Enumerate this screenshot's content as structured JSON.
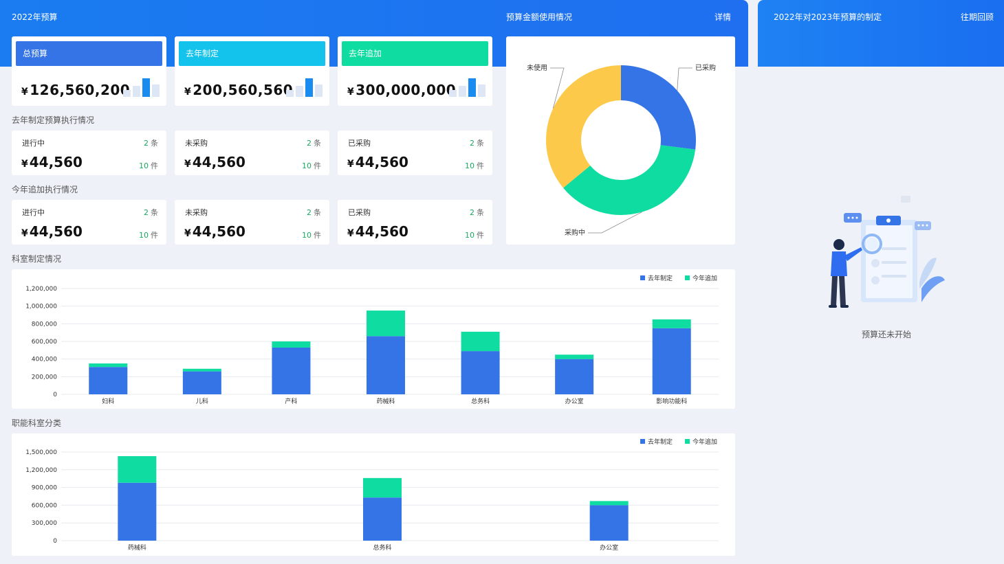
{
  "header": {
    "budget_title": "2022年预算",
    "usage_title": "预算金额使用情况",
    "details_link": "详情",
    "planning_title": "2022年对2023年预算的制定",
    "history_link": "往期回顾"
  },
  "summary_cards": [
    {
      "tag": "总预算",
      "color": "#3574e6",
      "yen": "¥",
      "amount": "126,560,200"
    },
    {
      "tag": "去年制定",
      "color": "#13c3ec",
      "yen": "¥",
      "amount": "200,560,560"
    },
    {
      "tag": "去年追加",
      "color": "#0fdca0",
      "yen": "¥",
      "amount": "300,000,000"
    }
  ],
  "last_year_section": {
    "title": "去年制定预算执行情况",
    "cards": [
      {
        "label": "进行中",
        "count": "2",
        "count_unit": "条",
        "yen": "¥",
        "amount": "44,560",
        "pieces": "10",
        "pieces_unit": "件"
      },
      {
        "label": "未采购",
        "count": "2",
        "count_unit": "条",
        "yen": "¥",
        "amount": "44,560",
        "pieces": "10",
        "pieces_unit": "件"
      },
      {
        "label": "已采购",
        "count": "2",
        "count_unit": "条",
        "yen": "¥",
        "amount": "44,560",
        "pieces": "10",
        "pieces_unit": "件"
      }
    ]
  },
  "this_year_section": {
    "title": "今年追加执行情况",
    "cards": [
      {
        "label": "进行中",
        "count": "2",
        "count_unit": "条",
        "yen": "¥",
        "amount": "44,560",
        "pieces": "10",
        "pieces_unit": "件"
      },
      {
        "label": "未采购",
        "count": "2",
        "count_unit": "条",
        "yen": "¥",
        "amount": "44,560",
        "pieces": "10",
        "pieces_unit": "件"
      },
      {
        "label": "已采购",
        "count": "2",
        "count_unit": "条",
        "yen": "¥",
        "amount": "44,560",
        "pieces": "10",
        "pieces_unit": "件"
      }
    ]
  },
  "dept_section": {
    "title": "科室制定情况"
  },
  "functional_section": {
    "title": "职能科室分类"
  },
  "empty_state": {
    "text": "预算还未开始"
  },
  "colors": {
    "blue": "#3574e6",
    "green": "#0fdca0",
    "yellow": "#fcc94b",
    "cyan": "#13c3ec"
  },
  "chart_data": [
    {
      "type": "pie",
      "title": "",
      "donut": true,
      "labels": [
        "已采购",
        "采购中",
        "未使用"
      ],
      "values": [
        27,
        37,
        36
      ],
      "colors": [
        "#3574e6",
        "#0fdca0",
        "#fcc94b"
      ]
    },
    {
      "type": "bar",
      "stacked": true,
      "categories": [
        "妇科",
        "儿科",
        "产科",
        "药械科",
        "总务科",
        "办公室",
        "影响功能科"
      ],
      "series": [
        {
          "name": "去年制定",
          "color": "#3574e6",
          "values": [
            310000,
            260000,
            530000,
            660000,
            490000,
            400000,
            750000
          ]
        },
        {
          "name": "今年追加",
          "color": "#0fdca0",
          "values": [
            40000,
            30000,
            70000,
            290000,
            220000,
            50000,
            100000
          ]
        }
      ],
      "ylim": [
        0,
        1200000
      ],
      "yticks": [
        "0",
        "200,000",
        "400,000",
        "600,000",
        "800,000",
        "1,000,000",
        "1,200,000"
      ],
      "legend": "top-right",
      "grid": true
    },
    {
      "type": "bar",
      "stacked": true,
      "categories": [
        "药械科",
        "总务科",
        "办公室"
      ],
      "series": [
        {
          "name": "去年制定",
          "color": "#3574e6",
          "values": [
            980000,
            730000,
            600000
          ]
        },
        {
          "name": "今年追加",
          "color": "#0fdca0",
          "values": [
            450000,
            330000,
            70000
          ]
        }
      ],
      "ylim": [
        0,
        1500000
      ],
      "yticks": [
        "0",
        "300,000",
        "600,000",
        "900,000",
        "1,200,000",
        "1,500,000"
      ],
      "legend": "top-right",
      "grid": true
    }
  ]
}
